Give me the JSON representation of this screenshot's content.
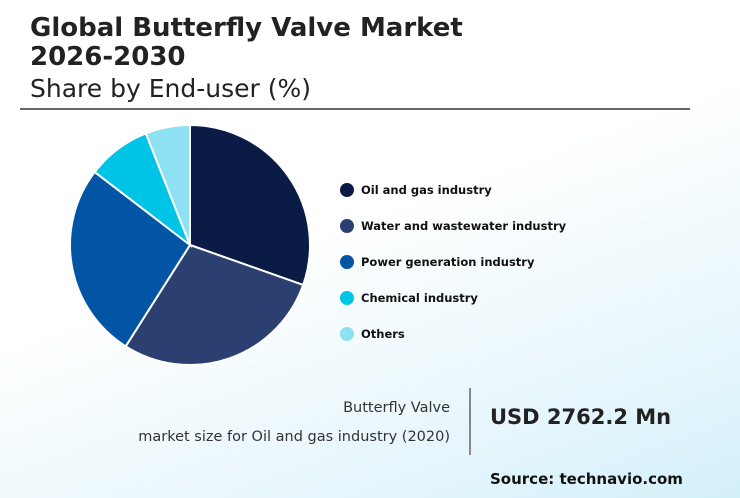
{
  "header": {
    "title_line1": "Global Butterfly Valve Market",
    "title_line2": "2026-2030",
    "subtitle": "Share by End-user (%)"
  },
  "chart_data": {
    "type": "pie",
    "title": "Global Butterfly Valve Market 2026-2030",
    "subtitle": "Share by End-user (%)",
    "legend_position": "right",
    "slices": [
      {
        "label": "Oil and gas industry",
        "value": 30.4,
        "color": "#0a1c45"
      },
      {
        "label": "Water and wastewater industry",
        "value": 28.6,
        "color": "#2b3f70"
      },
      {
        "label": "Power generation industry",
        "value": 26.4,
        "color": "#0254a5"
      },
      {
        "label": "Chemical industry",
        "value": 8.6,
        "color": "#00c4e6"
      },
      {
        "label": "Others",
        "value": 6.0,
        "color": "#8ee0f3"
      }
    ]
  },
  "stat": {
    "label_line1": "Butterfly Valve",
    "label_line2": "market size for Oil and gas industry (2020)",
    "value": "USD 2762.2 Mn"
  },
  "source": "Source: technavio.com"
}
